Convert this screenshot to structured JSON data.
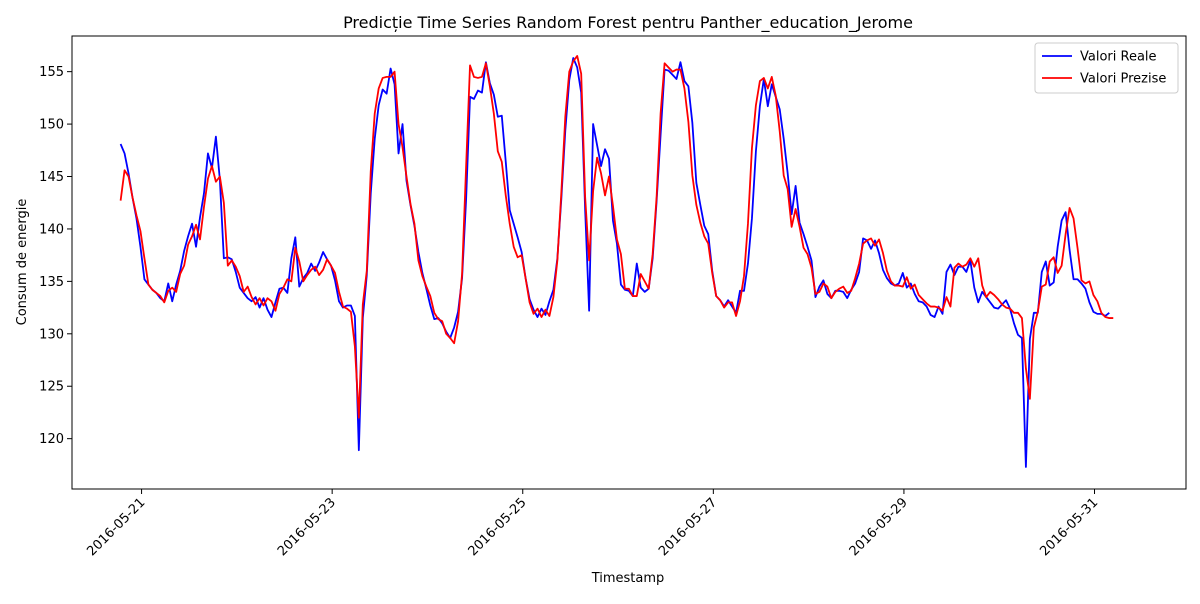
{
  "chart_data": {
    "type": "line",
    "title": "Predicție Time Series Random Forest pentru Panther_education_Jerome",
    "xlabel": "Timestamp",
    "ylabel": "Consum de energie",
    "x_ticks": [
      "2016-05-21",
      "2016-05-23",
      "2016-05-25",
      "2016-05-27",
      "2016-05-29",
      "2016-05-31"
    ],
    "y_ticks": [
      120,
      125,
      130,
      135,
      140,
      145,
      150,
      155
    ],
    "xlim_days": [
      -0.73,
      10.96
    ],
    "ylim": [
      115.2,
      158.4
    ],
    "x_start_day": -0.22,
    "step_hours": 1,
    "legend_position": "upper right",
    "grid": false,
    "series": [
      {
        "name": "Valori Reale",
        "color": "#0000ff",
        "values": [
          148.1,
          147.2,
          145.3,
          143.0,
          141.0,
          138.3,
          135.2,
          134.7,
          134.2,
          133.9,
          133.4,
          133.1,
          134.8,
          133.1,
          134.7,
          136.0,
          137.9,
          139.3,
          140.5,
          138.3,
          141.1,
          143.4,
          147.2,
          145.8,
          148.8,
          144.7,
          137.2,
          137.3,
          137.1,
          135.9,
          134.4,
          133.9,
          133.4,
          133.1,
          133.5,
          132.5,
          133.4,
          132.3,
          131.6,
          133.0,
          134.3,
          134.4,
          133.9,
          137.2,
          139.2,
          134.5,
          135.3,
          135.8,
          136.7,
          136.0,
          136.8,
          137.8,
          137.1,
          136.5,
          135.1,
          133.1,
          132.5,
          132.7,
          132.7,
          131.7,
          118.9,
          131.5,
          135.6,
          143.4,
          148.6,
          151.8,
          153.3,
          152.9,
          155.3,
          153.8,
          147.2,
          150.0,
          144.6,
          142.3,
          140.3,
          137.8,
          135.8,
          134.3,
          132.7,
          131.4,
          131.5,
          131.0,
          130.2,
          129.6,
          130.6,
          132.1,
          135.3,
          142.7,
          152.6,
          152.4,
          153.2,
          153.0,
          155.9,
          153.9,
          152.8,
          150.7,
          150.8,
          146.4,
          141.8,
          140.5,
          139.2,
          137.8,
          135.3,
          133.3,
          132.3,
          131.6,
          132.4,
          131.8,
          133.1,
          134.2,
          137.2,
          142.9,
          149.4,
          154.2,
          156.3,
          155.4,
          153.0,
          141.8,
          132.2,
          150.0,
          148.0,
          146.0,
          147.6,
          146.7,
          140.8,
          138.6,
          134.7,
          134.2,
          134.1,
          133.6,
          136.7,
          134.4,
          134.0,
          134.3,
          137.2,
          142.7,
          149.0,
          155.2,
          155.1,
          154.7,
          154.3,
          155.9,
          154.1,
          153.6,
          150.1,
          144.4,
          142.3,
          140.3,
          139.5,
          136.0,
          133.6,
          133.2,
          132.6,
          133.2,
          132.6,
          132.0,
          134.1,
          134.1,
          136.7,
          141.0,
          147.4,
          151.7,
          154.3,
          151.7,
          153.8,
          152.6,
          151.4,
          148.6,
          145.3,
          141.4,
          144.1,
          140.6,
          139.5,
          138.3,
          137.0,
          133.5,
          134.5,
          135.1,
          133.8,
          133.4,
          134.1,
          134.1,
          134.0,
          133.4,
          134.2,
          134.8,
          135.9,
          139.1,
          138.9,
          138.1,
          138.9,
          137.7,
          136.1,
          135.3,
          134.8,
          134.6,
          134.8,
          135.8,
          134.4,
          134.8,
          133.8,
          133.1,
          133.0,
          132.6,
          131.8,
          131.6,
          132.6,
          131.9,
          135.9,
          136.6,
          135.6,
          136.4,
          136.4,
          135.9,
          137.0,
          134.4,
          133.0,
          134.0,
          133.5,
          133.0,
          132.5,
          132.4,
          132.8,
          133.2,
          132.4,
          131.0,
          129.9,
          129.6,
          117.3,
          129.5,
          132.0,
          132.0,
          135.9,
          136.9,
          134.6,
          134.9,
          138.3,
          140.8,
          141.6,
          138.0,
          135.2,
          135.2,
          134.8,
          134.3,
          133.0,
          132.1,
          131.9,
          131.9,
          131.7,
          132.0
        ]
      },
      {
        "name": "Valori Prezise",
        "color": "#ff0000",
        "values": [
          142.7,
          145.6,
          145.0,
          143.0,
          141.3,
          139.8,
          137.2,
          134.7,
          134.2,
          133.9,
          133.6,
          133.0,
          134.1,
          134.4,
          134.0,
          135.7,
          136.5,
          138.5,
          139.3,
          140.4,
          139.0,
          142.1,
          144.8,
          146.0,
          144.5,
          145.0,
          142.5,
          136.5,
          137.0,
          136.4,
          135.5,
          134.0,
          134.5,
          133.5,
          132.8,
          133.4,
          132.7,
          133.4,
          133.1,
          132.2,
          133.8,
          134.4,
          135.2,
          135.0,
          138.2,
          136.9,
          135.0,
          135.6,
          136.1,
          136.4,
          135.6,
          136.1,
          137.1,
          136.5,
          135.8,
          134.0,
          132.6,
          132.4,
          132.1,
          128.8,
          122.0,
          132.8,
          136.0,
          145.5,
          151.0,
          153.4,
          154.4,
          154.5,
          154.5,
          155.0,
          150.0,
          147.8,
          145.0,
          142.4,
          140.5,
          137.0,
          135.5,
          134.5,
          133.6,
          132.0,
          131.4,
          131.2,
          130.0,
          129.6,
          129.1,
          131.2,
          135.7,
          145.8,
          155.6,
          154.5,
          154.4,
          154.5,
          155.8,
          153.6,
          151.0,
          147.4,
          146.4,
          143.2,
          140.5,
          138.3,
          137.3,
          137.5,
          135.3,
          133.0,
          131.9,
          132.4,
          131.6,
          132.3,
          131.7,
          133.5,
          137.0,
          143.5,
          150.7,
          155.0,
          156.0,
          156.5,
          154.8,
          143.0,
          137.0,
          143.6,
          146.8,
          145.3,
          143.2,
          145.0,
          142.2,
          139.0,
          137.6,
          134.3,
          134.3,
          133.6,
          133.6,
          135.7,
          135.0,
          134.3,
          137.6,
          143.1,
          151.0,
          155.8,
          155.4,
          155.0,
          155.2,
          155.2,
          153.4,
          150.2,
          145.1,
          142.3,
          140.6,
          139.3,
          138.6,
          135.8,
          133.6,
          133.2,
          132.5,
          133.0,
          133.0,
          131.7,
          133.1,
          135.5,
          140.5,
          147.7,
          151.8,
          154.1,
          154.4,
          153.4,
          154.5,
          152.7,
          149.3,
          145.1,
          143.8,
          140.2,
          141.9,
          140.2,
          138.2,
          137.6,
          136.3,
          133.8,
          134.0,
          134.8,
          134.5,
          133.4,
          134.0,
          134.3,
          134.5,
          133.9,
          134.1,
          135.3,
          136.7,
          138.6,
          138.9,
          139.1,
          138.4,
          139.0,
          137.7,
          136.0,
          135.0,
          134.6,
          134.6,
          134.5,
          135.4,
          134.3,
          134.7,
          133.7,
          133.3,
          132.9,
          132.6,
          132.6,
          132.5,
          132.2,
          133.5,
          132.6,
          136.3,
          136.7,
          136.4,
          136.6,
          137.2,
          136.4,
          137.2,
          134.6,
          133.5,
          134.0,
          133.7,
          133.3,
          132.8,
          132.5,
          132.4,
          132.0,
          132.0,
          131.5,
          126.7,
          123.8,
          130.6,
          132.1,
          134.5,
          134.7,
          136.9,
          137.3,
          135.8,
          136.5,
          139.5,
          142.0,
          141.0,
          138.2,
          135.1,
          134.8,
          135.0,
          133.7,
          133.1,
          132.0,
          131.6,
          131.5,
          131.5
        ]
      }
    ]
  }
}
